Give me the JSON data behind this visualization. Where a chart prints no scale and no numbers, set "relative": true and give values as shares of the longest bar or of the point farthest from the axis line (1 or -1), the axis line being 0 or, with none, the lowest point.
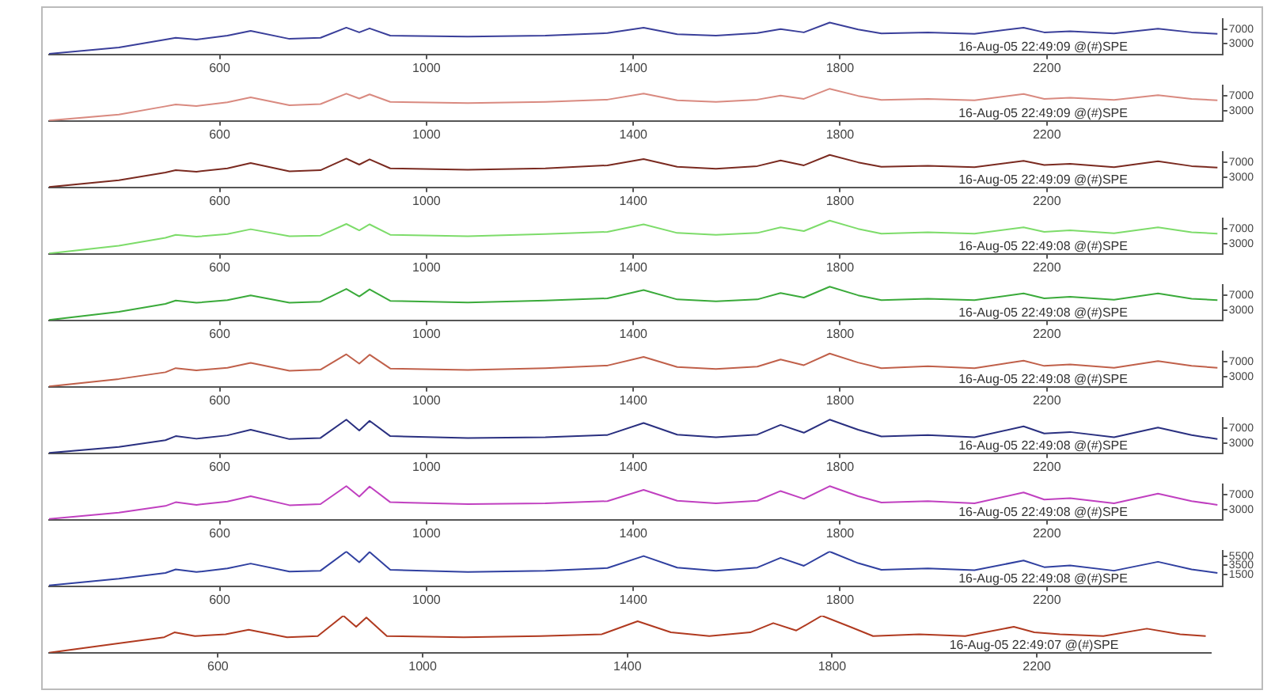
{
  "chart_data": [
    {
      "type": "line",
      "annotations": [
        "16-Aug-05 22:49:09 @(#)SPE"
      ],
      "x": [
        270,
        405,
        495,
        515,
        555,
        615,
        660,
        735,
        795,
        845,
        870,
        890,
        930,
        1080,
        1230,
        1350,
        1420,
        1485,
        1560,
        1640,
        1685,
        1730,
        1780,
        1835,
        1880,
        1970,
        2060,
        2155,
        2195,
        2245,
        2330,
        2415,
        2480,
        2530
      ],
      "values": [
        200,
        1900,
        4100,
        4600,
        4100,
        5200,
        6500,
        4300,
        4600,
        7400,
        6100,
        7200,
        5200,
        4900,
        5200,
        5900,
        7400,
        5600,
        5200,
        5900,
        7000,
        6100,
        8800,
        6900,
        5800,
        6100,
        5700,
        7400,
        6100,
        6400,
        5800,
        7100,
        6100,
        5700
      ],
      "color": "#3a3f9a",
      "xlim": [
        270,
        2540
      ],
      "xticks": [
        600,
        1000,
        1400,
        1800,
        2200
      ],
      "ylim": [
        0,
        9700
      ],
      "yticks": [
        3000,
        7000
      ]
    },
    {
      "type": "line",
      "annotations": [
        "16-Aug-05 22:49:09 @(#)SPE"
      ],
      "x": [
        270,
        405,
        495,
        515,
        555,
        615,
        660,
        735,
        795,
        845,
        870,
        890,
        930,
        1080,
        1230,
        1350,
        1420,
        1485,
        1560,
        1640,
        1685,
        1730,
        1780,
        1835,
        1880,
        1970,
        2060,
        2155,
        2195,
        2245,
        2330,
        2415,
        2480,
        2530
      ],
      "values": [
        400,
        2000,
        4200,
        4700,
        4300,
        5300,
        6600,
        4500,
        4800,
        7600,
        6300,
        7400,
        5400,
        5100,
        5400,
        6000,
        7600,
        5800,
        5400,
        6000,
        7100,
        6200,
        8900,
        7000,
        5900,
        6200,
        5800,
        7500,
        6200,
        6500,
        5900,
        7200,
        6200,
        5800
      ],
      "color": "#d98a80",
      "xlim": [
        270,
        2540
      ],
      "xticks": [
        600,
        1000,
        1400,
        1800,
        2200
      ],
      "ylim": [
        300,
        9700
      ],
      "yticks": [
        3000,
        7000
      ]
    },
    {
      "type": "line",
      "annotations": [
        "16-Aug-05 22:49:09 @(#)SPE"
      ],
      "x": [
        270,
        405,
        495,
        515,
        555,
        615,
        660,
        735,
        795,
        845,
        870,
        890,
        930,
        1080,
        1230,
        1350,
        1420,
        1485,
        1560,
        1640,
        1685,
        1730,
        1780,
        1835,
        1880,
        1970,
        2060,
        2155,
        2195,
        2245,
        2330,
        2415,
        2480,
        2530
      ],
      "values": [
        400,
        2200,
        4300,
        4900,
        4500,
        5400,
        6800,
        4600,
        4900,
        8000,
        6400,
        7800,
        5400,
        5000,
        5400,
        6200,
        7900,
        5800,
        5300,
        6000,
        7500,
        6200,
        9000,
        7000,
        5800,
        6100,
        5700,
        7400,
        6300,
        6600,
        5700,
        7300,
        6000,
        5600
      ],
      "color": "#7a2a20",
      "xlim": [
        270,
        2540
      ],
      "xticks": [
        600,
        1000,
        1400,
        1800,
        2200
      ],
      "ylim": [
        300,
        9700
      ],
      "yticks": [
        3000,
        7000
      ]
    },
    {
      "type": "line",
      "annotations": [
        "16-Aug-05 22:49:08 @(#)SPE"
      ],
      "x": [
        270,
        405,
        495,
        515,
        555,
        615,
        660,
        735,
        795,
        845,
        870,
        890,
        930,
        1080,
        1230,
        1350,
        1420,
        1485,
        1560,
        1640,
        1685,
        1730,
        1780,
        1835,
        1880,
        1970,
        2060,
        2155,
        2195,
        2245,
        2330,
        2415,
        2480,
        2530
      ],
      "values": [
        400,
        2500,
        4600,
        5400,
        4900,
        5600,
        6900,
        5000,
        5200,
        8300,
        6600,
        8200,
        5400,
        5000,
        5600,
        6200,
        8200,
        5900,
        5400,
        5900,
        7400,
        6400,
        9200,
        7000,
        5700,
        6100,
        5700,
        7400,
        6200,
        6600,
        5800,
        7400,
        6100,
        5700
      ],
      "color": "#7ddc6a",
      "xlim": [
        270,
        2540
      ],
      "xticks": [
        600,
        1000,
        1400,
        1800,
        2200
      ],
      "ylim": [
        300,
        9700
      ],
      "yticks": [
        3000,
        7000
      ]
    },
    {
      "type": "line",
      "annotations": [
        "16-Aug-05 22:49:08 @(#)SPE"
      ],
      "x": [
        270,
        405,
        495,
        515,
        555,
        615,
        660,
        735,
        795,
        845,
        870,
        890,
        930,
        1080,
        1230,
        1350,
        1420,
        1485,
        1560,
        1640,
        1685,
        1730,
        1780,
        1835,
        1880,
        1970,
        2060,
        2155,
        2195,
        2245,
        2330,
        2415,
        2480,
        2530
      ],
      "values": [
        400,
        2600,
        4700,
        5600,
        5000,
        5700,
        7000,
        5000,
        5300,
        8700,
        6700,
        8600,
        5500,
        5100,
        5600,
        6200,
        8400,
        5900,
        5400,
        5900,
        7600,
        6400,
        9300,
        7000,
        5700,
        6100,
        5700,
        7500,
        6200,
        6600,
        5800,
        7500,
        6100,
        5700
      ],
      "color": "#3aaa3a",
      "xlim": [
        270,
        2540
      ],
      "xticks": [
        600,
        1000,
        1400,
        1800,
        2200
      ],
      "ylim": [
        300,
        9700
      ],
      "yticks": [
        3000,
        7000
      ]
    },
    {
      "type": "line",
      "annotations": [
        "16-Aug-05 22:49:08 @(#)SPE"
      ],
      "x": [
        270,
        405,
        495,
        515,
        555,
        615,
        660,
        735,
        795,
        845,
        870,
        890,
        930,
        1080,
        1230,
        1350,
        1420,
        1485,
        1560,
        1640,
        1685,
        1730,
        1780,
        1835,
        1880,
        1970,
        2060,
        2155,
        2195,
        2245,
        2330,
        2415,
        2480,
        2530
      ],
      "values": [
        400,
        2400,
        4200,
        5300,
        4700,
        5400,
        6700,
        4600,
        4900,
        9000,
        6500,
        8900,
        5200,
        4800,
        5300,
        6000,
        8300,
        5600,
        5100,
        5700,
        7600,
        6100,
        9200,
        6800,
        5300,
        5800,
        5300,
        7300,
        5900,
        6300,
        5400,
        7200,
        5900,
        5400
      ],
      "color": "#c0604a",
      "xlim": [
        270,
        2540
      ],
      "xticks": [
        600,
        1000,
        1400,
        1800,
        2200
      ],
      "ylim": [
        300,
        9700
      ],
      "yticks": [
        3000,
        7000
      ]
    },
    {
      "type": "line",
      "annotations": [
        "16-Aug-05 22:49:08 @(#)SPE"
      ],
      "x": [
        270,
        405,
        495,
        515,
        555,
        615,
        660,
        735,
        795,
        845,
        870,
        890,
        930,
        1080,
        1230,
        1350,
        1420,
        1485,
        1560,
        1640,
        1685,
        1730,
        1780,
        1835,
        1880,
        1970,
        2060,
        2155,
        2195,
        2245,
        2330,
        2415,
        2480,
        2530
      ],
      "values": [
        400,
        2000,
        3800,
        4900,
        4200,
        5100,
        6600,
        4100,
        4400,
        9300,
        6400,
        9000,
        4900,
        4400,
        4600,
        5200,
        8400,
        5300,
        4600,
        5300,
        7900,
        5800,
        9300,
        6600,
        4800,
        5200,
        4600,
        7500,
        5600,
        6000,
        4600,
        7200,
        5200,
        4100
      ],
      "color": "#2a3080",
      "xlim": [
        270,
        2540
      ],
      "xticks": [
        600,
        1000,
        1400,
        1800,
        2200
      ],
      "ylim": [
        300,
        9700
      ],
      "yticks": [
        3000,
        7000
      ]
    },
    {
      "type": "line",
      "annotations": [
        "16-Aug-05 22:49:08 @(#)SPE"
      ],
      "x": [
        270,
        405,
        495,
        515,
        555,
        615,
        660,
        735,
        795,
        845,
        870,
        890,
        930,
        1080,
        1230,
        1350,
        1420,
        1485,
        1560,
        1640,
        1685,
        1730,
        1780,
        1835,
        1880,
        1970,
        2060,
        2155,
        2195,
        2245,
        2330,
        2415,
        2480,
        2530
      ],
      "values": [
        500,
        2200,
        4000,
        5000,
        4300,
        5200,
        6600,
        4200,
        4500,
        9300,
        6500,
        9200,
        5000,
        4500,
        4700,
        5300,
        8300,
        5400,
        4700,
        5400,
        8000,
        5900,
        9300,
        6600,
        4900,
        5300,
        4700,
        7600,
        5700,
        6100,
        4700,
        7300,
        5300,
        4300
      ],
      "color": "#c040c0",
      "xlim": [
        270,
        2540
      ],
      "xticks": [
        600,
        1000,
        1400,
        1800,
        2200
      ],
      "ylim": [
        300,
        9700
      ],
      "yticks": [
        3000,
        7000
      ]
    },
    {
      "type": "line",
      "annotations": [
        "16-Aug-05 22:49:08 @(#)SPE"
      ],
      "x": [
        270,
        405,
        495,
        515,
        555,
        615,
        660,
        735,
        795,
        845,
        870,
        890,
        930,
        1080,
        1230,
        1350,
        1420,
        1485,
        1560,
        1640,
        1685,
        1730,
        1780,
        1835,
        1880,
        1970,
        2060,
        2155,
        2195,
        2245,
        2330,
        2415,
        2480,
        2530
      ],
      "values": [
        -1000,
        500,
        1800,
        2600,
        2000,
        2800,
        3900,
        2100,
        2300,
        6600,
        4200,
        6500,
        2500,
        2000,
        2300,
        2900,
        5600,
        3000,
        2300,
        3000,
        5200,
        3400,
        6600,
        4000,
        2500,
        2800,
        2400,
        4600,
        3100,
        3500,
        2300,
        4300,
        2600,
        1800
      ],
      "color": "#3040a0",
      "xlim": [
        270,
        2540
      ],
      "xticks": [
        600,
        1000,
        1400,
        1800,
        2200
      ],
      "ylim": [
        -1200,
        6700
      ],
      "yticks": [
        1500,
        3500,
        5500
      ]
    },
    {
      "type": "line",
      "annotations": [
        "16-Aug-05 22:49:07 @(#)SPE"
      ],
      "x": [
        270,
        405,
        495,
        515,
        555,
        615,
        660,
        735,
        795,
        845,
        870,
        890,
        930,
        1080,
        1230,
        1350,
        1420,
        1485,
        1560,
        1640,
        1685,
        1730,
        1780,
        1835,
        1880,
        1970,
        2060,
        2155,
        2195,
        2245,
        2330,
        2415,
        2480,
        2530
      ],
      "values": [
        0,
        0.25,
        0.42,
        0.55,
        0.45,
        0.5,
        0.62,
        0.42,
        0.45,
        1,
        0.7,
        0.95,
        0.45,
        0.42,
        0.45,
        0.5,
        0.85,
        0.55,
        0.45,
        0.55,
        0.8,
        0.6,
        1,
        0.7,
        0.45,
        0.5,
        0.45,
        0.7,
        0.55,
        0.5,
        0.45,
        0.65,
        0.5,
        0.45
      ],
      "color": "#b03a20",
      "xlim": [
        270,
        2540
      ],
      "xticks": [
        600,
        1000,
        1400,
        1800,
        2200
      ],
      "relative": true
    }
  ]
}
